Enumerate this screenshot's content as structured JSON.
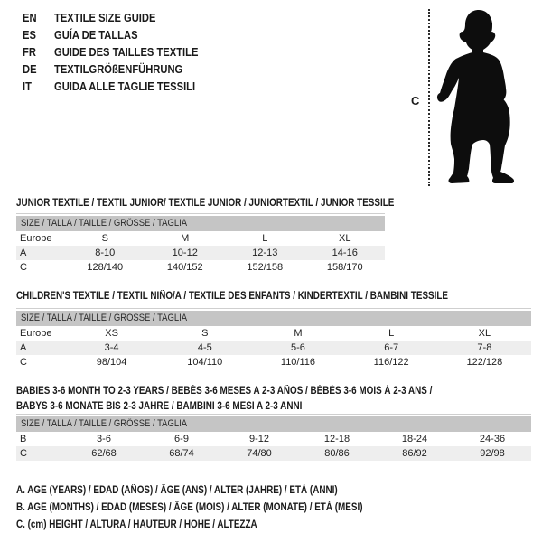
{
  "title_block": {
    "items": [
      {
        "code": "EN",
        "label": "TEXTILE SIZE GUIDE"
      },
      {
        "code": "ES",
        "label": "GUÍA DE TALLAS"
      },
      {
        "code": "FR",
        "label": "GUIDE DES TAILLES TEXTILE"
      },
      {
        "code": "DE",
        "label": "TEXTILGRÖßENFÜHRUNG"
      },
      {
        "code": "IT",
        "label": "GUIDA ALLE TAGLIE TESSILI"
      }
    ]
  },
  "figure": {
    "icon": "baby-silhouette",
    "measure_label": "C"
  },
  "tables": [
    {
      "title_lines": [
        "JUNIOR TEXTILE / TEXTIL JUNIOR/ TEXTILE JUNIOR / JUNIORTEXTIL / JUNIOR TESSILE"
      ],
      "size_header": "SIZE / TALLA / TAILLE / GRÖSSE / TAGLIA",
      "rows": [
        {
          "label": "Europe",
          "values": [
            "S",
            "M",
            "L",
            "XL"
          ],
          "striped": false
        },
        {
          "label": "A",
          "values": [
            "8-10",
            "10-12",
            "12-13",
            "14-16"
          ],
          "striped": true
        },
        {
          "label": "C",
          "values": [
            "128/140",
            "140/152",
            "152/158",
            "158/170"
          ],
          "striped": false
        }
      ]
    },
    {
      "title_lines": [
        "CHILDREN'S TEXTILE / TEXTIL NIÑO/A / TEXTILE DES ENFANTS / KINDERTEXTIL / BAMBINI TESSILE"
      ],
      "size_header": "SIZE / TALLA / TAILLE / GRÖSSE / TAGLIA",
      "rows": [
        {
          "label": "Europe",
          "values": [
            "XS",
            "S",
            "M",
            "L",
            "XL"
          ],
          "striped": false
        },
        {
          "label": "A",
          "values": [
            "3-4",
            "4-5",
            "5-6",
            "6-7",
            "7-8"
          ],
          "striped": true
        },
        {
          "label": "C",
          "values": [
            "98/104",
            "104/110",
            "110/116",
            "116/122",
            "122/128"
          ],
          "striped": false
        }
      ]
    },
    {
      "title_lines": [
        "BABIES 3-6 MONTH TO 2-3 YEARS / BEBÉS 3-6 MESES A 2-3 AÑOS / BÉBÉS 3-6 MOIS À 2-3 ANS /",
        "BABYS 3-6 MONATE BIS 2-3 JAHRE / BAMBINI 3-6 MESI A 2-3 ANNI"
      ],
      "size_header": "SIZE / TALLA / TAILLE / GRÖSSE / TAGLIA",
      "rows": [
        {
          "label": "B",
          "values": [
            "3-6",
            "6-9",
            "9-12",
            "12-18",
            "18-24",
            "24-36"
          ],
          "striped": false
        },
        {
          "label": "C",
          "values": [
            "62/68",
            "68/74",
            "74/80",
            "80/86",
            "86/92",
            "92/98"
          ],
          "striped": true
        }
      ]
    }
  ],
  "legend": {
    "lines": [
      "A. AGE (YEARS) / EDAD (AÑOS) / ÂGE (ANS) / ALTER (JAHRE) / ETÀ (ANNI)",
      "B. AGE (MONTHS) / EDAD (MESES) / ÂGE (MOIS) / ALTER (MONATE) / ETÀ (MESI)",
      "C. (cm) HEIGHT / ALTURA / HAUTEUR / HÖHE / ALTEZZA"
    ]
  },
  "colors": {
    "header_bar": "#c5c5c5",
    "row_stripe": "#eeeeee",
    "silhouette": "#0d0d0d",
    "text": "#1a1a1a"
  }
}
